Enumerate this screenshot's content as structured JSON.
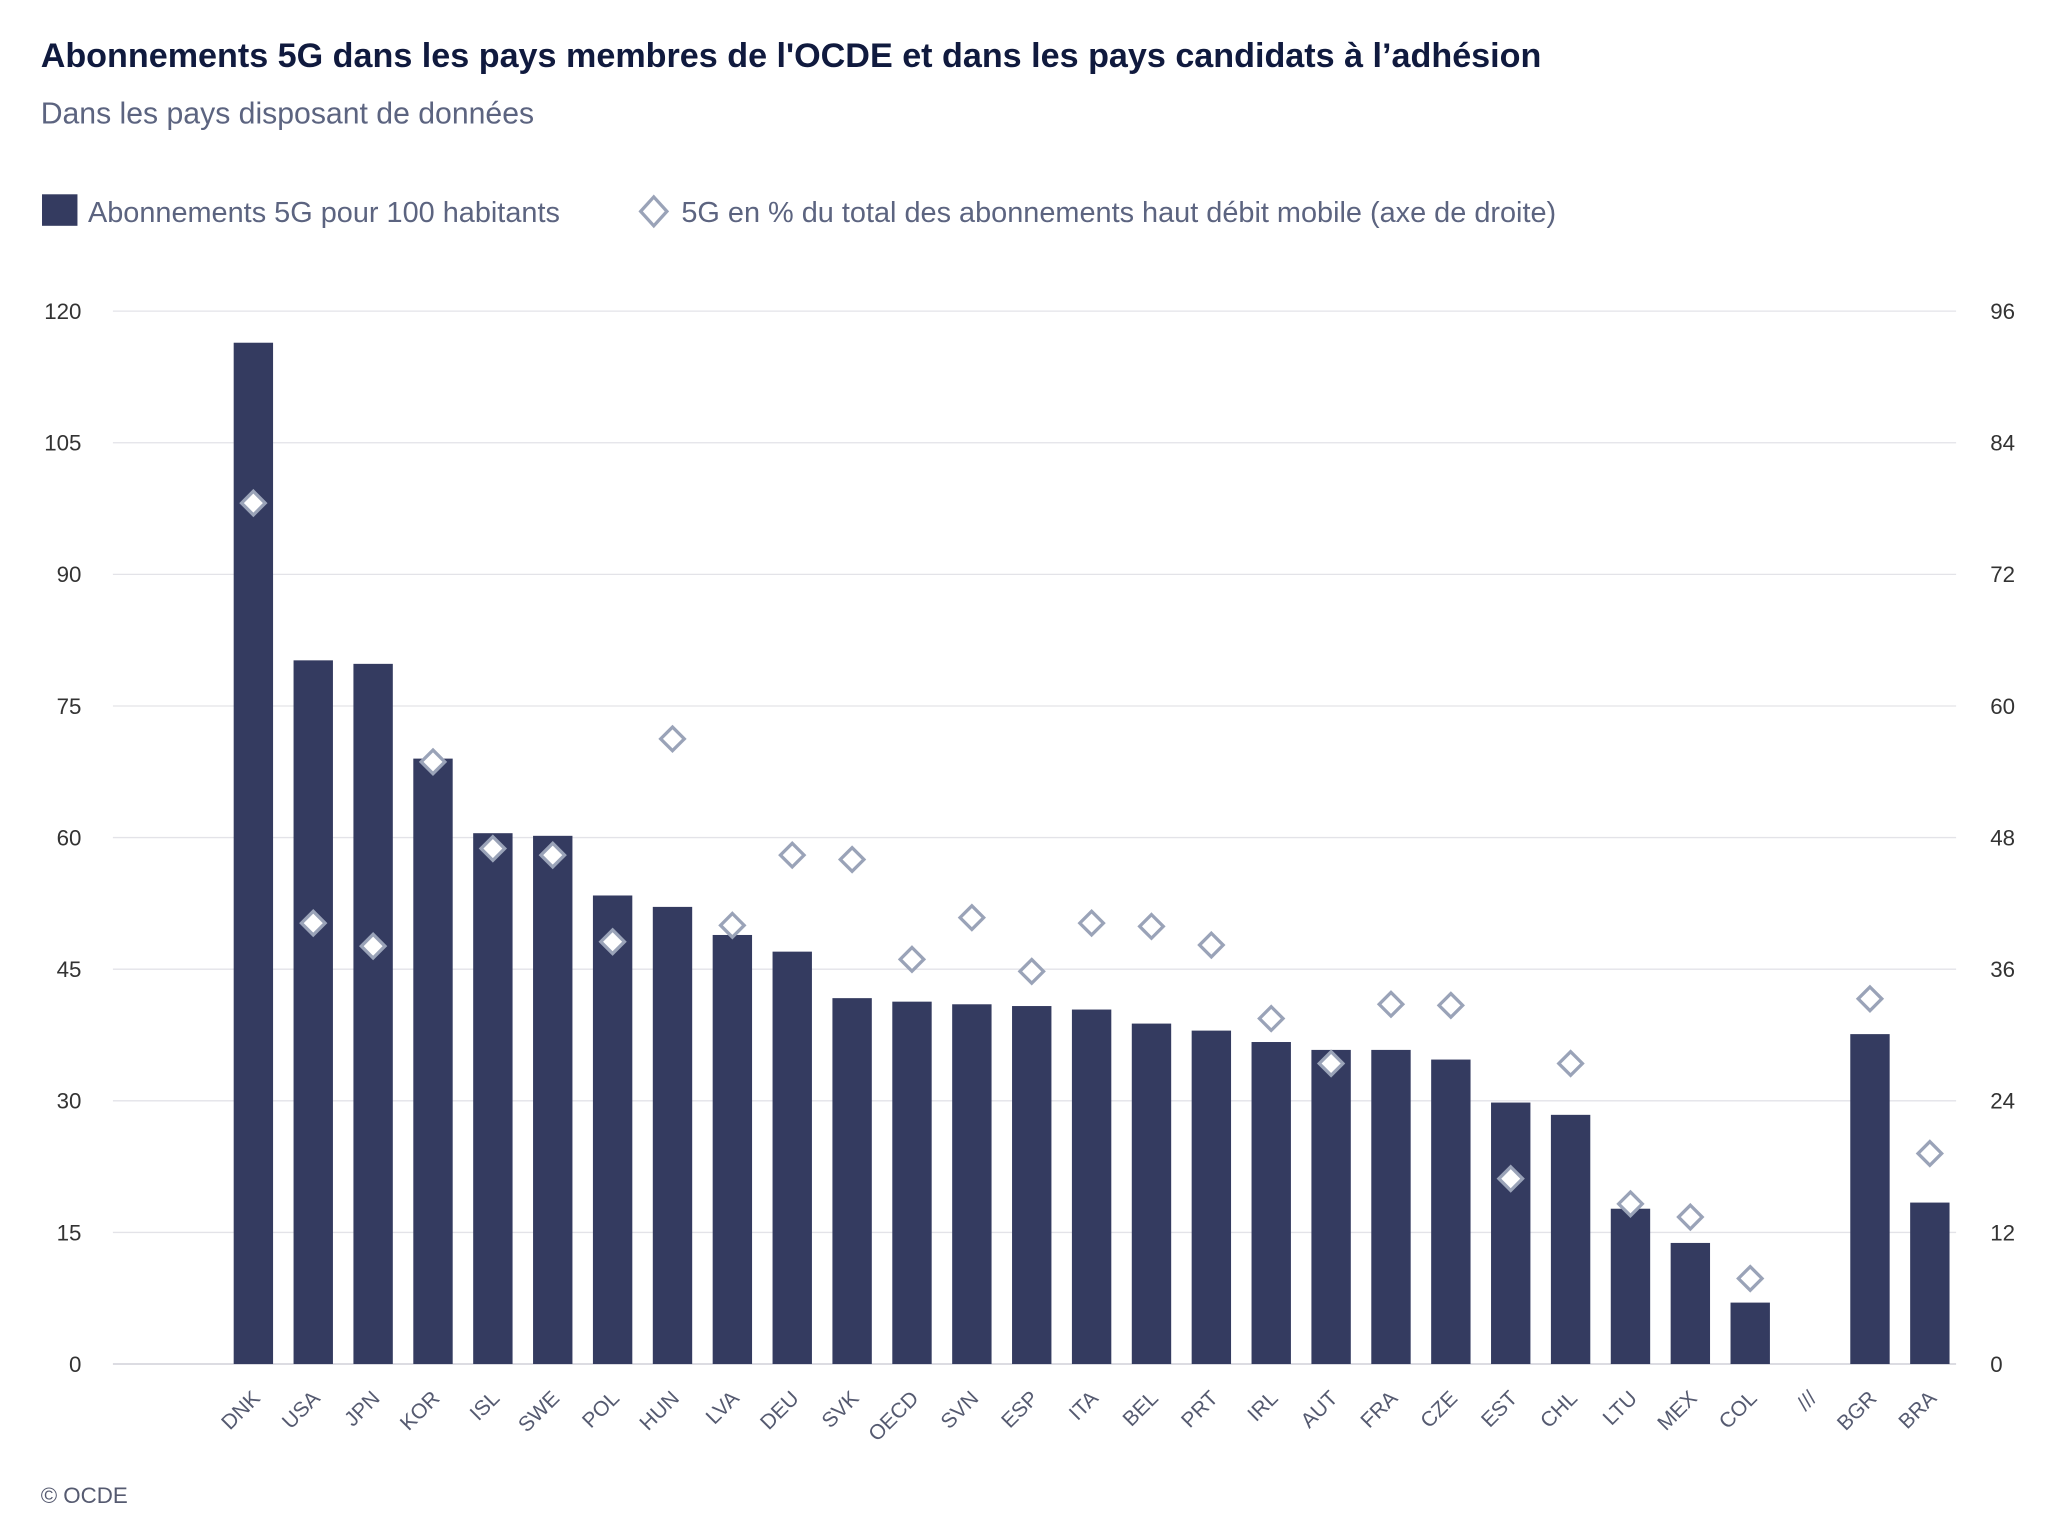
{
  "header": {
    "title": "Abonnements 5G dans les pays membres de l'OCDE et dans les pays candidats à l’adhésion",
    "subtitle": "Dans les pays disposant de données"
  },
  "footer": {
    "credit": "© OCDE"
  },
  "colors": {
    "bar": "#343b60",
    "diamond_stroke": "#9aa3b8",
    "diamond_fill": "#ffffff",
    "grid": "#e3e3e8"
  },
  "chart_data": {
    "type": "bar",
    "categories": [
      "DNK",
      "USA",
      "JPN",
      "KOR",
      "ISL",
      "SWE",
      "POL",
      "HUN",
      "LVA",
      "DEU",
      "SVK",
      "OECD",
      "SVN",
      "ESP",
      "ITA",
      "BEL",
      "PRT",
      "IRL",
      "AUT",
      "FRA",
      "CZE",
      "EST",
      "CHL",
      "LTU",
      "MEX",
      "COL",
      "///",
      "BGR",
      "BRA"
    ],
    "series": [
      {
        "name": "Abonnements 5G pour 100 habitants",
        "type": "bar",
        "axis": "left",
        "values": [
          116.4,
          80.2,
          79.8,
          69.0,
          60.5,
          60.2,
          53.4,
          52.1,
          48.9,
          47.0,
          41.7,
          41.3,
          41.0,
          40.8,
          40.4,
          38.8,
          38.0,
          36.7,
          35.8,
          35.8,
          34.7,
          29.8,
          28.4,
          17.7,
          13.8,
          7.0,
          null,
          37.6,
          18.4
        ]
      },
      {
        "name": "5G en % du total des abonnements haut débit mobile (axe de droite)",
        "type": "scatter",
        "marker": "diamond",
        "axis": "right",
        "values": [
          78.5,
          40.2,
          38.1,
          54.9,
          47.0,
          46.4,
          38.5,
          57.0,
          40.0,
          46.4,
          46.0,
          36.9,
          40.7,
          35.8,
          40.2,
          39.9,
          38.2,
          31.5,
          27.4,
          32.8,
          32.7,
          16.9,
          27.4,
          14.6,
          13.4,
          7.8,
          null,
          33.3,
          19.2
        ]
      }
    ],
    "y_left": {
      "range": [
        0,
        120
      ],
      "ticks": [
        "0",
        "15",
        "30",
        "45",
        "60",
        "75",
        "90",
        "105",
        "120"
      ]
    },
    "y_right": {
      "range": [
        0,
        96
      ],
      "ticks": [
        "0",
        "12",
        "24",
        "36",
        "48",
        "60",
        "72",
        "84",
        "96"
      ]
    },
    "grid": true,
    "legend": "top-left"
  }
}
